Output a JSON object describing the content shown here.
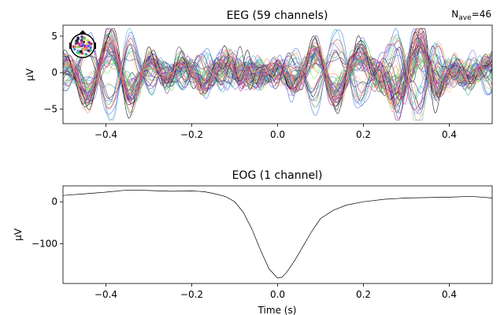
{
  "chart_data": [
    {
      "type": "line",
      "title": "EEG (59 channels)",
      "annotation": {
        "label": "N",
        "subscript": "ave",
        "value": "=46"
      },
      "xlabel": "",
      "ylabel": "µV",
      "xlim": [
        -0.5,
        0.5
      ],
      "ylim": [
        -7,
        6.5
      ],
      "xticks": [
        -0.4,
        -0.2,
        0.0,
        0.2,
        0.4
      ],
      "xtick_labels": [
        "−0.4",
        "−0.2",
        "0.0",
        "0.2",
        "0.4"
      ],
      "yticks": [
        5,
        0,
        -5
      ],
      "ytick_labels": [
        "5",
        "0",
        "−5"
      ],
      "channel_count": 59,
      "sensor_inset": "head-sensor-map",
      "series_colors": [
        "#000000",
        "#2a1f4f",
        "#4b2a7d",
        "#6c2f8c",
        "#8c2a8a",
        "#ad2d7a",
        "#e0307a",
        "#ff4fa0",
        "#ff7f50",
        "#ffa060",
        "#f5c06a",
        "#d8e86a",
        "#a8f06a",
        "#66ee55",
        "#22dd44",
        "#18c878",
        "#20c8a0",
        "#30b8c8",
        "#3aa0e0",
        "#4070f0",
        "#5050ff",
        "#7a5cf0",
        "#9d8de0",
        "#b0b0c8"
      ]
    },
    {
      "type": "line",
      "title": "EOG (1 channel)",
      "xlabel": "Time (s)",
      "ylabel": "µV",
      "xlim": [
        -0.5,
        0.5
      ],
      "ylim": [
        -195,
        38
      ],
      "xticks": [
        -0.4,
        -0.2,
        0.0,
        0.2,
        0.4
      ],
      "xtick_labels": [
        "−0.4",
        "−0.2",
        "0.0",
        "0.2",
        "0.4"
      ],
      "yticks": [
        0,
        -100
      ],
      "ytick_labels": [
        "0",
        "−100"
      ],
      "series": [
        {
          "color": "#000000",
          "x": [
            -0.5,
            -0.45,
            -0.4,
            -0.35,
            -0.3,
            -0.25,
            -0.2,
            -0.17,
            -0.15,
            -0.12,
            -0.1,
            -0.08,
            -0.06,
            -0.04,
            -0.02,
            0.0,
            0.01,
            0.02,
            0.04,
            0.06,
            0.08,
            0.1,
            0.13,
            0.16,
            0.2,
            0.25,
            0.3,
            0.35,
            0.4,
            0.45,
            0.5
          ],
          "y": [
            15,
            19,
            23,
            28,
            27,
            25,
            26,
            24,
            20,
            12,
            0,
            -25,
            -65,
            -115,
            -160,
            -182,
            -180,
            -170,
            -140,
            -105,
            -70,
            -40,
            -20,
            -8,
            0,
            6,
            9,
            10,
            11,
            13,
            9
          ]
        }
      ]
    }
  ]
}
